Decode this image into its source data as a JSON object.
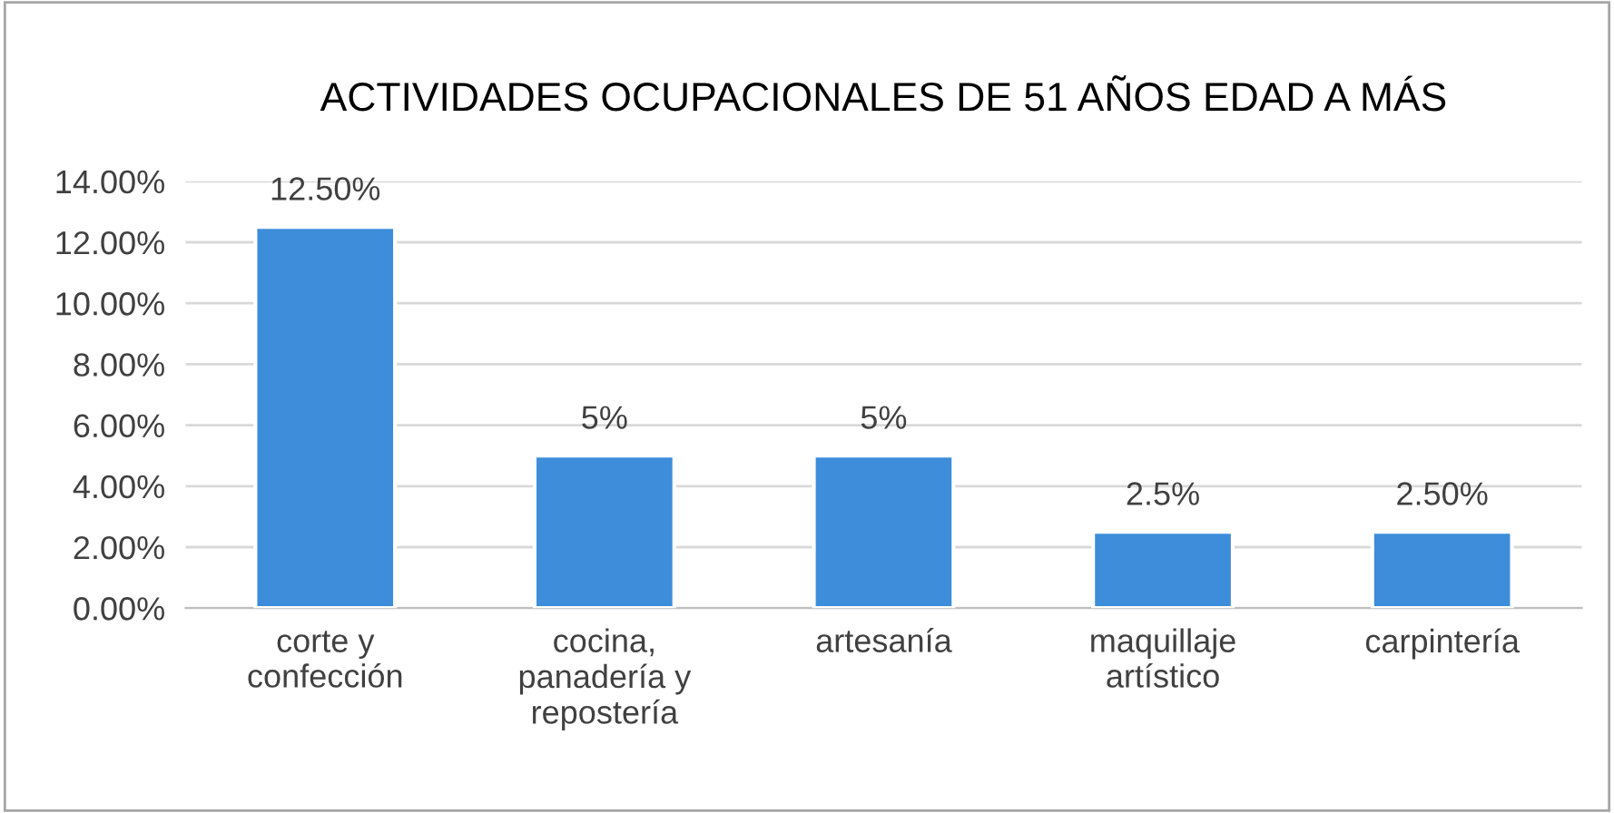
{
  "chart_data": {
    "type": "bar",
    "title": "ACTIVIDADES OCUPACIONALES DE 51 AÑOS EDAD A MÁS",
    "categories": [
      "corte y\nconfección",
      "cocina,\npanadería y\nrepostería",
      "artesanía",
      "maquillaje\nartístico",
      "carpintería"
    ],
    "values": [
      12.5,
      5,
      5,
      2.5,
      2.5
    ],
    "value_labels": [
      "12.50%",
      "5%",
      "5%",
      "2.5%",
      "2.50%"
    ],
    "color": "#3d8ddb",
    "ylim": [
      0,
      14
    ],
    "yticks": [
      {
        "value": 0,
        "label": "0.00%"
      },
      {
        "value": 2,
        "label": "2.00%"
      },
      {
        "value": 4,
        "label": "4.00%"
      },
      {
        "value": 6,
        "label": "6.00%"
      },
      {
        "value": 8,
        "label": "8.00%"
      },
      {
        "value": 10,
        "label": "10.00%"
      },
      {
        "value": 12,
        "label": "12.00%"
      },
      {
        "value": 14,
        "label": "14.00%"
      }
    ],
    "grid": "y",
    "legend": false
  }
}
